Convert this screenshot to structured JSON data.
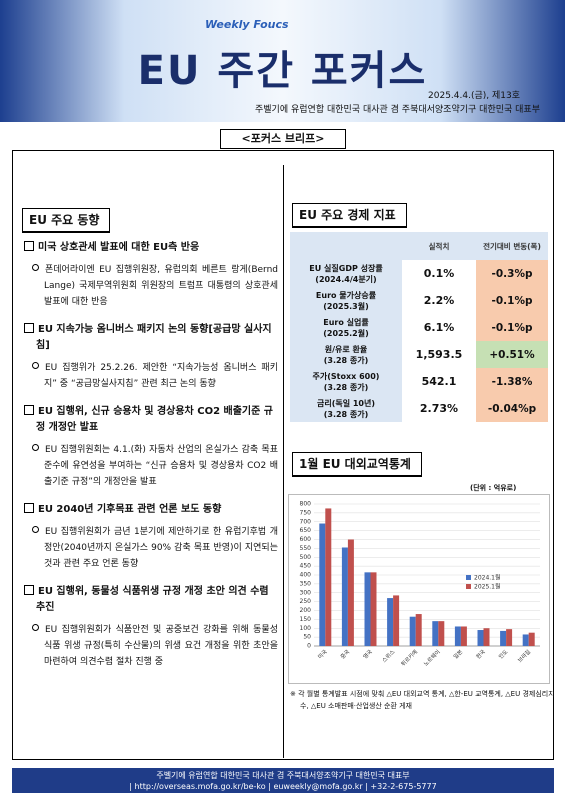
{
  "header": {
    "subtitle": "Weekly Foucs",
    "title": "EU 주간 포커스",
    "issue": "2025.4.4.(금), 제13호",
    "publisher": "주벨기에 유럽연합 대한민국 대사관 겸 주북대서양조약기구 대한민국 대표부"
  },
  "brief_title": "<포커스 브리프>",
  "trends": {
    "heading": "EU 주요 동향",
    "items": [
      {
        "title": "미국 상호관세 발표에 대한 EU측 반응",
        "detail": "폰데어라이엔 EU 집행위원장, 유럽의회 베른트 랑게(Bernd Lange) 국제무역위원회 위원장의 트럼프 대통령의 상호관세 발표에 대한 반응"
      },
      {
        "title": "EU 지속가능 옴니버스 패키지 논의 동향[공급망 실사지침]",
        "detail": "EU 집행위가 25.2.26. 제안한 “지속가능성 옴니버스 패키지” 중 “공급망실사지침” 관련 최근 논의 동향"
      },
      {
        "title": "EU 집행위, 신규 승용차 및 경상용차 CO2 배출기준 규정 개정안 발표",
        "detail": "EU 집행위원회는 4.1.(화) 자동차 산업의 온실가스 감축 목표 준수에 유연성을 부여하는 “신규 승용차 및 경상용차 CO2 배출기준 규정”의 개정안을 발표"
      },
      {
        "title": "EU 2040년 기후목표 관련 언론 보도 동향",
        "detail": "EU 집행위원회가 금년 1분기에 제안하기로 한 유럽기후법 개정안(2040년까지 온실가스 90% 감축 목표 반영)이 지연되는 것과 관련 주요 언론 동향"
      },
      {
        "title": "EU 집행위, 동물성 식품위생 규정 개정 초안 의견 수렴 추진",
        "detail": "EU 집행위원회가 식품안전 및 공중보건 강화를 위해 동물성 식품 위생 규정(특히 수산물)의 위생 요건 개정을 위한 초안을 마련하여 의견수렴 절차 진행 중"
      }
    ]
  },
  "indicators": {
    "heading": "EU 주요 경제 지표",
    "columns": [
      "실적치",
      "전기대비 변동(폭)"
    ],
    "rows": [
      {
        "label": "EU 실질GDP 성장률",
        "period": "(2024.4/4분기)",
        "value": "0.1%",
        "change": "-0.3%p",
        "color": "#f8cbad"
      },
      {
        "label": "Euro 물가상승률",
        "period": "(2025.3월)",
        "value": "2.2%",
        "change": "-0.1%p",
        "color": "#f8cbad"
      },
      {
        "label": "Euro 실업률",
        "period": "(2025.2월)",
        "value": "6.1%",
        "change": "-0.1%p",
        "color": "#f8cbad"
      },
      {
        "label": "원/유로 환율",
        "period": "(3.28 종가)",
        "value": "1,593.5",
        "change": "+0.51%",
        "color": "#c6e0b4"
      },
      {
        "label": "주가(Stoxx 600)",
        "period": "(3.28 종가)",
        "value": "542.1",
        "change": "-1.38%",
        "color": "#f8cbad"
      },
      {
        "label": "금리(독일 10년)",
        "period": "(3.28 종가)",
        "value": "2.73%",
        "change": "-0.04%p",
        "color": "#f8cbad"
      }
    ]
  },
  "chart_data": {
    "type": "bar",
    "title": "1월 EU 대외교역통계",
    "unit": "(단위 : 억유로)",
    "categories": [
      "미국",
      "중국",
      "영국",
      "스위스",
      "튀르키예",
      "노르웨이",
      "일본",
      "한국",
      "인도",
      "브라질"
    ],
    "series": [
      {
        "name": "2024.1월",
        "color": "#4472c4",
        "values": [
          690,
          555,
          415,
          270,
          165,
          140,
          110,
          90,
          85,
          65
        ]
      },
      {
        "name": "2025.1월",
        "color": "#c0504d",
        "values": [
          775,
          600,
          415,
          285,
          180,
          140,
          110,
          100,
          95,
          75
        ]
      }
    ],
    "ylim": [
      0,
      800
    ],
    "yticks": [
      0,
      50,
      100,
      150,
      200,
      250,
      300,
      350,
      400,
      450,
      500,
      550,
      600,
      650,
      700,
      750,
      800
    ],
    "grid": true,
    "legend": "right"
  },
  "note": "※ 각 월별 통계발표 시점에 맞춰 △EU 대외교역 통계, △한-EU 교역통계, △EU 경제심리지수, △EU 소매판매·산업생산 순환 게재",
  "footer": {
    "publisher": "주벨기에 유럽연합 대한민국 대사관 겸 주북대서양조약기구 대한민국 대표부",
    "contact": "| http://overseas.mofa.go.kr/be-ko | euweekly@mofa.go.kr | +32-2-675-5777"
  }
}
